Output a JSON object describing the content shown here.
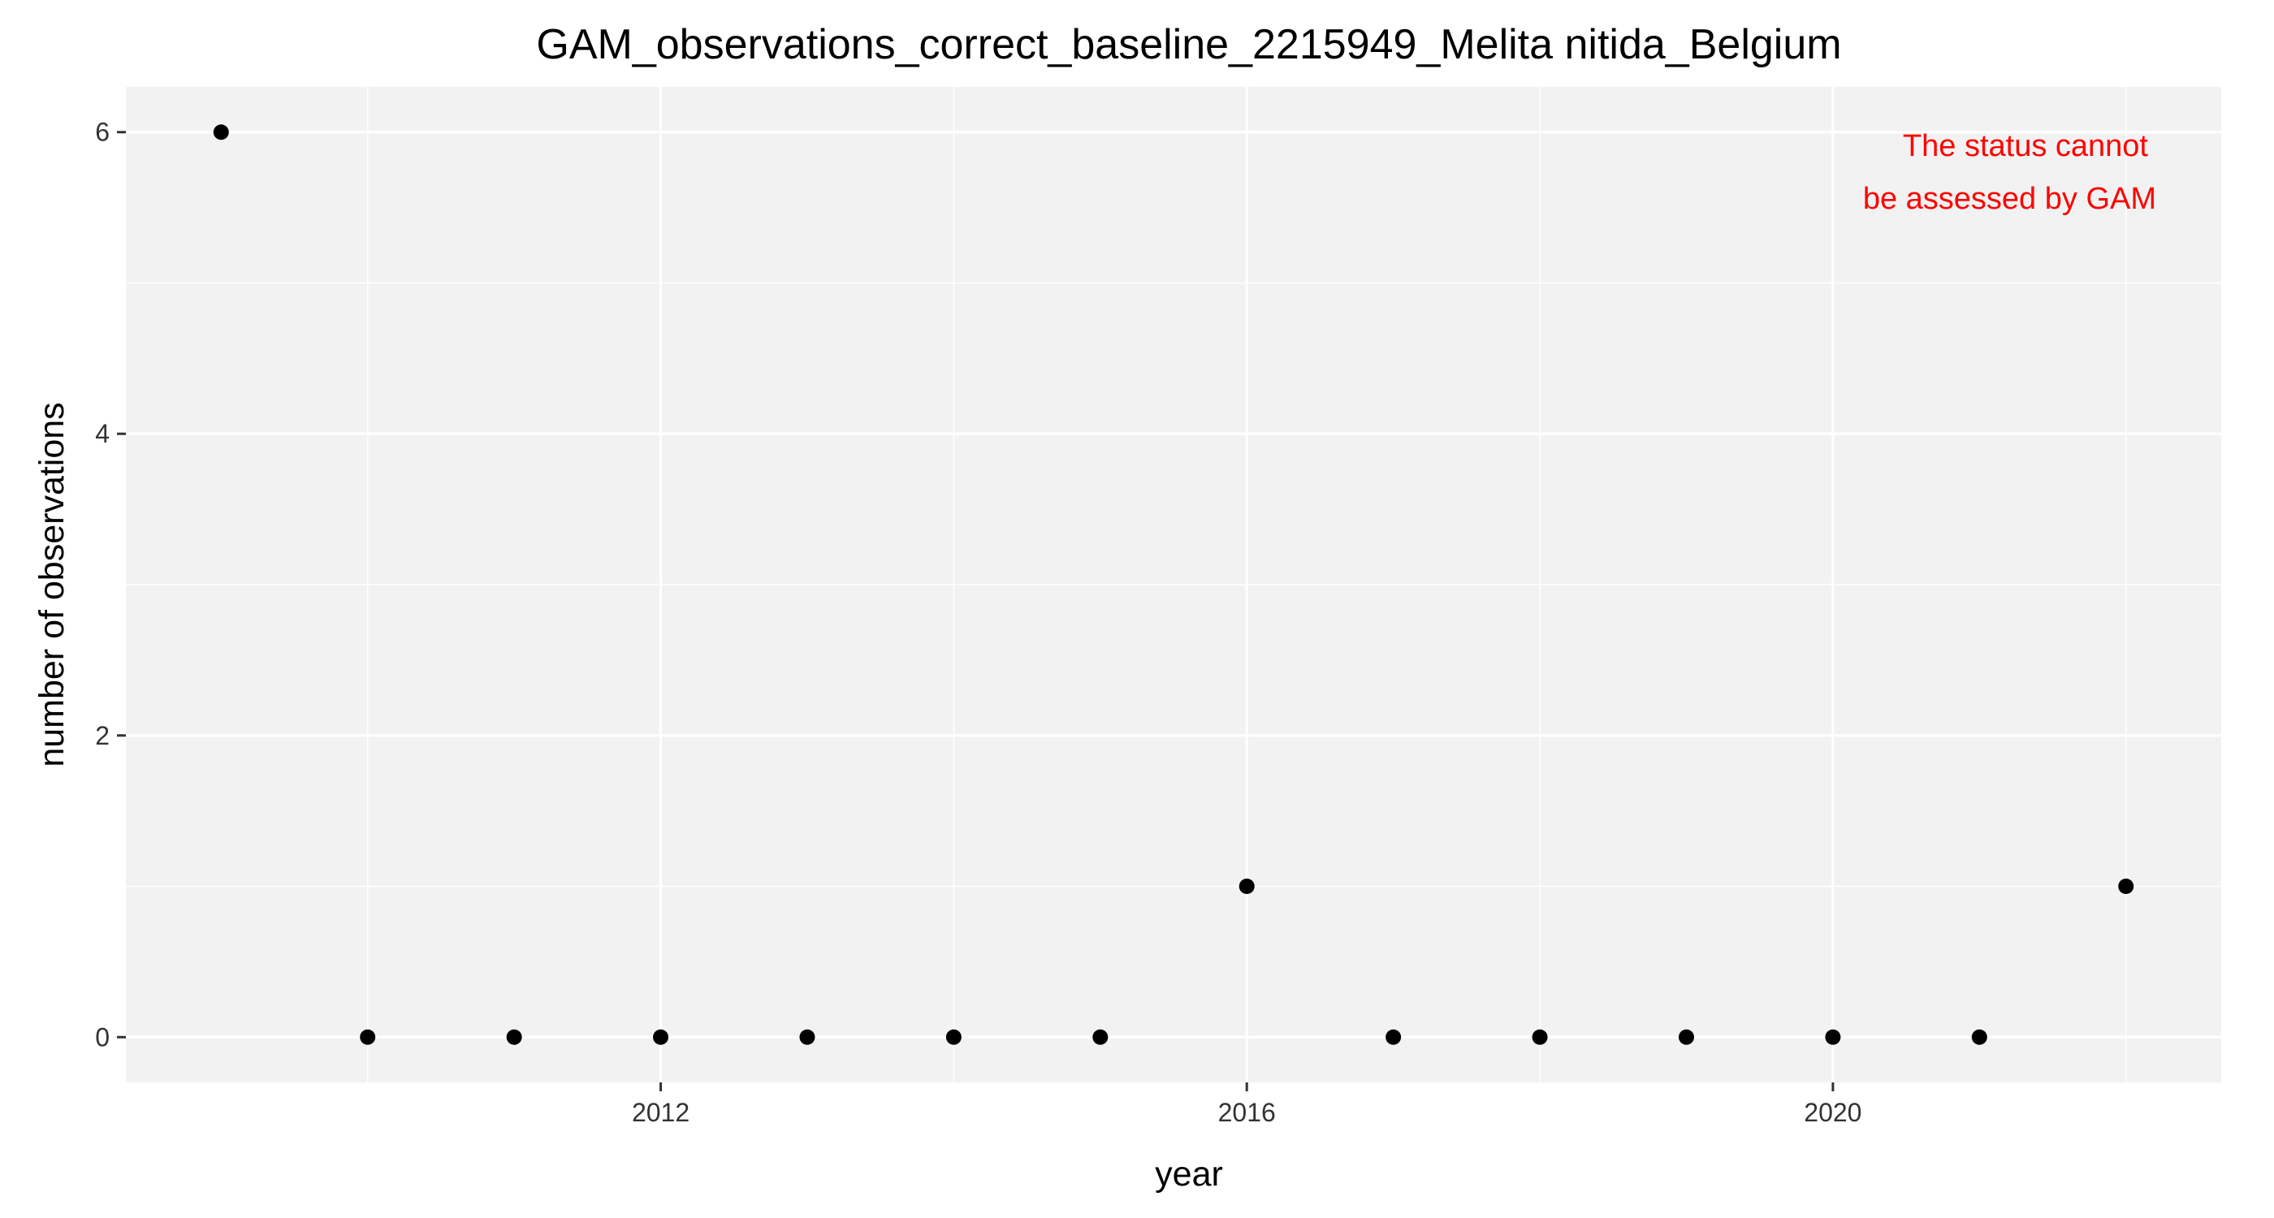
{
  "chart_data": {
    "type": "scatter",
    "title": "GAM_observations_correct_baseline_2215949_Melita nitida_Belgium",
    "xlabel": "year",
    "ylabel": "number of observations",
    "x": [
      2009,
      2010,
      2011,
      2012,
      2013,
      2014,
      2015,
      2016,
      2017,
      2018,
      2019,
      2020,
      2021,
      2022
    ],
    "y": [
      6,
      0,
      0,
      0,
      0,
      0,
      0,
      1,
      0,
      0,
      0,
      0,
      0,
      1
    ],
    "xlim": [
      2008.35,
      2022.65
    ],
    "ylim": [
      -0.3,
      6.3
    ],
    "x_ticks": [
      2012,
      2016,
      2020
    ],
    "x_tick_labels": [
      "2012",
      "2016",
      "2020"
    ],
    "y_ticks": [
      0,
      2,
      4,
      6
    ],
    "y_tick_labels": [
      "0",
      "2",
      "4",
      "6"
    ],
    "grid": true,
    "legend": "none",
    "annotation": {
      "lines": [
        "The status cannot",
        "be assessed by GAM"
      ],
      "color": "#ff0000",
      "position": "top-right"
    },
    "colors": {
      "panel_background": "#f2f2f2",
      "grid": "#ffffff",
      "point": "#000000"
    }
  }
}
